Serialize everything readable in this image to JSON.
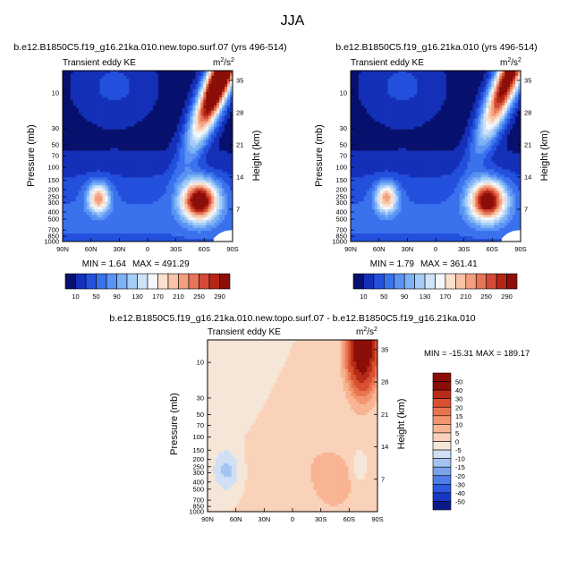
{
  "figure": {
    "title": "JJA",
    "units": "m",
    "units_sup": "2",
    "units_sep": "/s",
    "units_sup2": "2"
  },
  "chart_data": [
    {
      "type": "heatmap",
      "title": "b.e12.B1850C5.f19_g16.21ka.010.new.topo.surf.07 (yrs 496-514)",
      "subtitle": "Transient eddy KE",
      "ylabel": "Pressure (mb)",
      "ylabel_right": "Height (km)",
      "x_ticks": [
        "90N",
        "60N",
        "30N",
        "0",
        "30S",
        "60S",
        "90S"
      ],
      "y_ticks": [
        "10",
        "30",
        "50",
        "70",
        "100",
        "150",
        "200",
        "250",
        "300",
        "400",
        "500",
        "700",
        "850",
        "1000"
      ],
      "y_ticks_right": [
        "35",
        "28",
        "21",
        "14",
        "7"
      ],
      "min_text": "MIN =   1.64",
      "max_text": "MAX = 491.29",
      "colorbar_labels": [
        "10",
        "50",
        "90",
        "130",
        "170",
        "210",
        "250",
        "290"
      ],
      "features": [
        {
          "lat": -55,
          "p": 280,
          "amp": 300
        },
        {
          "lat": 52,
          "p": 260,
          "amp": 180
        },
        {
          "lat": -82,
          "p": 8,
          "amp": 420
        }
      ]
    },
    {
      "type": "heatmap",
      "title": "b.e12.B1850C5.f19_g16.21ka.010 (yrs 496-514)",
      "subtitle": "Transient eddy KE",
      "ylabel": "Pressure (mb)",
      "ylabel_right": "Height (km)",
      "x_ticks": [
        "90N",
        "60N",
        "30N",
        "0",
        "30S",
        "60S",
        "90S"
      ],
      "y_ticks": [
        "10",
        "30",
        "50",
        "70",
        "100",
        "150",
        "200",
        "250",
        "300",
        "400",
        "500",
        "700",
        "850",
        "1000"
      ],
      "y_ticks_right": [
        "35",
        "28",
        "21",
        "14",
        "7"
      ],
      "min_text": "MIN =   1.79",
      "max_text": "MAX = 361.41",
      "colorbar_labels": [
        "10",
        "50",
        "90",
        "130",
        "170",
        "210",
        "250",
        "290"
      ],
      "features": [
        {
          "lat": -55,
          "p": 280,
          "amp": 290
        },
        {
          "lat": 52,
          "p": 260,
          "amp": 175
        },
        {
          "lat": -82,
          "p": 8,
          "amp": 330
        }
      ]
    },
    {
      "type": "heatmap",
      "title": "b.e12.B1850C5.f19_g16.21ka.010.new.topo.surf.07 - b.e12.B1850C5.f19_g16.21ka.010",
      "subtitle": "Transient eddy KE",
      "ylabel": "Pressure (mb)",
      "ylabel_right": "Height (km)",
      "x_ticks": [
        "90N",
        "60N",
        "30N",
        "0",
        "30S",
        "60S",
        "90S"
      ],
      "y_ticks": [
        "10",
        "30",
        "50",
        "70",
        "100",
        "150",
        "200",
        "250",
        "300",
        "400",
        "500",
        "700",
        "850",
        "1000"
      ],
      "y_ticks_right": [
        "35",
        "28",
        "21",
        "14",
        "7"
      ],
      "minmax_text": "MIN = -15.31   MAX = 189.17",
      "colorbar_labels": [
        "50",
        "40",
        "30",
        "20",
        "15",
        "10",
        "5",
        "0",
        "-5",
        "-10",
        "-15",
        "-20",
        "-30",
        "-40",
        "-50"
      ],
      "features": [
        {
          "lat": -75,
          "p": 6,
          "amp": 60
        },
        {
          "lat": -60,
          "p": 400,
          "amp": 4
        },
        {
          "lat": 70,
          "p": 280,
          "amp": -12
        }
      ]
    }
  ],
  "colormaps": {
    "abs": [
      "#08106e",
      "#1530b8",
      "#2350dd",
      "#3a72ee",
      "#5a93f4",
      "#7db2f6",
      "#a5cdf6",
      "#cfe3f8",
      "#f3f7fb",
      "#fbe0cd",
      "#f8c3a6",
      "#f39f7f",
      "#e77558",
      "#d44a36",
      "#b62616",
      "#8b0f08"
    ],
    "diff": [
      "#0a1a8c",
      "#1838c4",
      "#2e58e0",
      "#4e7ee8",
      "#7ba3ec",
      "#a5c3f0",
      "#cfe0f6",
      "#f5e6d8",
      "#fad2b9",
      "#f8b493",
      "#f39670",
      "#e87450",
      "#d8502f",
      "#b82b17",
      "#8b0e08"
    ]
  }
}
